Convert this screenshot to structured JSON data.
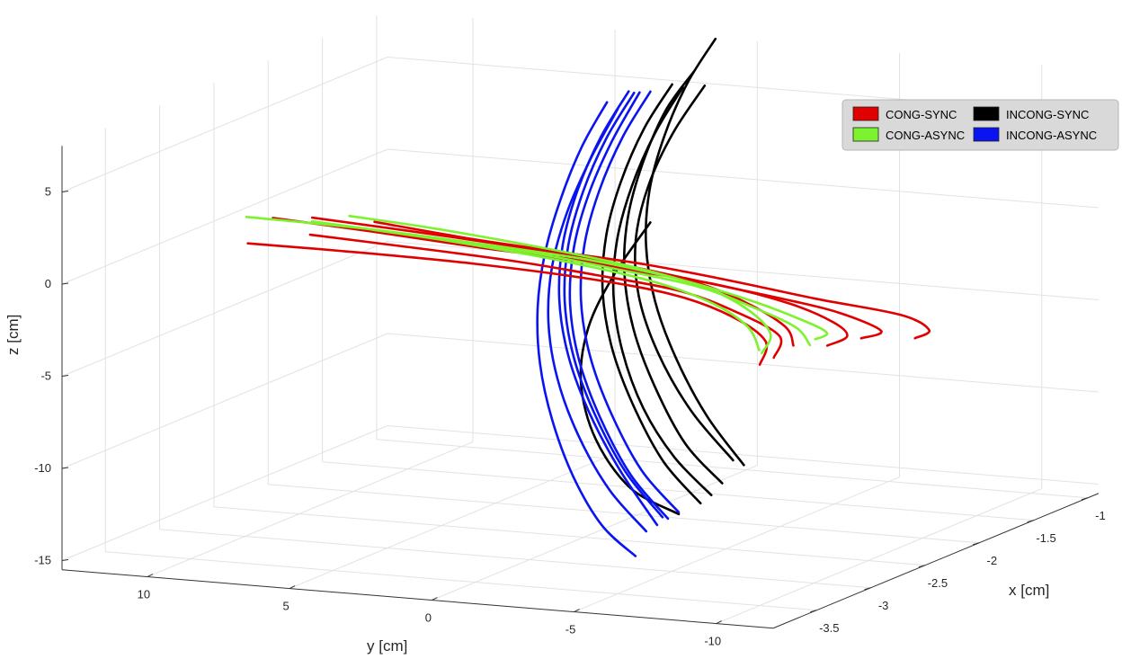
{
  "chart_data": {
    "type": "line3d",
    "xlabel": "x [cm]",
    "ylabel": "y [cm]",
    "zlabel": "z [cm]",
    "xlim": [
      -3.9,
      -0.9
    ],
    "ylim": [
      -12,
      13
    ],
    "zlim": [
      -15.5,
      7.5
    ],
    "x_ticks": [
      "-1",
      "-1.5",
      "-2",
      "-2.5",
      "-3",
      "-3.5"
    ],
    "y_ticks": [
      "10",
      "5",
      "0",
      "-5",
      "-10"
    ],
    "z_ticks": [
      "5",
      "0",
      "-5",
      "-10",
      "-15"
    ],
    "grid": true,
    "legend_placement": "top-right",
    "series": [
      {
        "name": "CONG-SYNC",
        "color": "#e00000",
        "trajectories": [
          {
            "y": [
              8.5,
              5,
              2,
              -1,
              -4,
              -7,
              -10,
              -11,
              -10.5
            ],
            "z": [
              -0.2,
              -0.7,
              -1.0,
              -1.3,
              -1.8,
              -2.4,
              -2.9,
              -3.6,
              -4.1
            ]
          },
          {
            "y": [
              10.5,
              7,
              3,
              0,
              -3,
              -6,
              -8,
              -9.5,
              -8.8
            ],
            "z": [
              -0.1,
              -0.4,
              -0.8,
              -1.2,
              -1.8,
              -2.4,
              -2.9,
              -3.7,
              -4.2
            ]
          },
          {
            "y": [
              9,
              6,
              2,
              -1,
              -4,
              -6.5,
              -8,
              -8.5,
              -7.8
            ],
            "z": [
              -0.3,
              -0.6,
              -1.0,
              -1.4,
              -1.8,
              -2.5,
              -3.3,
              -4.0,
              -4.6
            ]
          },
          {
            "y": [
              11.5,
              8,
              4,
              0,
              -3,
              -5,
              -6.5,
              -6.8
            ],
            "z": [
              0.0,
              -0.3,
              -0.7,
              -1.0,
              -1.5,
              -2.4,
              -3.6,
              -4.6
            ]
          },
          {
            "y": [
              10,
              7,
              3,
              0,
              -3,
              -5,
              -6.5,
              -6.3
            ],
            "z": [
              -0.6,
              -0.8,
              -1.1,
              -1.5,
              -2.0,
              -2.9,
              -4.0,
              -5.2
            ]
          },
          {
            "y": [
              12,
              8,
              4,
              0,
              -3,
              -5,
              -6.2,
              -6.0
            ],
            "z": [
              -1.2,
              -1.2,
              -1.3,
              -1.6,
              -2.1,
              -3.0,
              -4.2,
              -5.5
            ]
          }
        ]
      },
      {
        "name": "CONG-ASYNC",
        "color": "#7df22e",
        "trajectories": [
          {
            "y": [
              13,
              9,
              5,
              1,
              -2,
              -4.5,
              -6.5,
              -7.4,
              -7.0
            ],
            "z": [
              -0.5,
              -0.6,
              -0.9,
              -1.3,
              -1.9,
              -2.7,
              -3.6,
              -4.2,
              -4.6
            ]
          },
          {
            "y": [
              10.5,
              7,
              3,
              0,
              -3,
              -5,
              -6.5,
              -7.0
            ],
            "z": [
              -0.3,
              -0.6,
              -1.0,
              -1.5,
              -2.1,
              -3.0,
              -3.9,
              -4.8
            ]
          },
          {
            "y": [
              9,
              6,
              2,
              -1,
              -3.5,
              -5,
              -5.8,
              -5.5
            ],
            "z": [
              0.3,
              0.0,
              -0.6,
              -1.2,
              -2.0,
              -3.0,
              -4.2,
              -5.3
            ]
          },
          {
            "y": [
              8,
              5,
              1,
              -2,
              -4,
              -5.2,
              -5.6
            ],
            "z": [
              -0.2,
              -0.5,
              -1.1,
              -1.8,
              -2.7,
              -3.8,
              -5.0
            ]
          }
        ]
      },
      {
        "name": "INCONG-SYNC",
        "color": "#000000",
        "trajectories": [
          {
            "x": -1.6,
            "z": [
              9.5,
              7,
              4,
              1,
              -2,
              -5,
              -8,
              -11,
              -13.5
            ]
          },
          {
            "x": -1.8,
            "z": [
              8.2,
              6,
              3,
              0,
              -3,
              -6,
              -9,
              -12,
              -14.0
            ]
          },
          {
            "x": -2.0,
            "z": [
              8.0,
              5.5,
              2.5,
              -0.5,
              -3.5,
              -6.5,
              -9.5,
              -12.5,
              -14.6
            ]
          },
          {
            "x": -1.9,
            "z": [
              7.6,
              5,
              2,
              -1,
              -4,
              -7,
              -10,
              -12.5,
              -14.4
            ]
          },
          {
            "x": -2.2,
            "z": [
              1.0,
              -2,
              -5,
              -8,
              -11,
              -13.5,
              -14.7
            ]
          },
          {
            "x": -1.7,
            "z": [
              7.2,
              4.5,
              1.5,
              -1.5,
              -4.5,
              -7.5,
              -10.5,
              -13.0
            ]
          }
        ]
      },
      {
        "name": "INCONG-ASYNC",
        "color": "#0a14f0",
        "trajectories": [
          {
            "x": -2.6,
            "z": [
              8.5,
              6,
              3,
              0,
              -3,
              -6,
              -9,
              -12,
              -14.5,
              -16.0
            ]
          },
          {
            "x": -2.4,
            "z": [
              8.6,
              6,
              3,
              0,
              -3,
              -6,
              -9,
              -12,
              -14.8
            ]
          },
          {
            "x": -2.3,
            "z": [
              8.3,
              5.5,
              2.5,
              -0.5,
              -3.5,
              -6.5,
              -9.5,
              -12.5,
              -14.7
            ]
          },
          {
            "x": -2.2,
            "z": [
              8.1,
              5.5,
              2.5,
              -0.5,
              -3.5,
              -6.5,
              -9.5,
              -12.5,
              -14.6
            ]
          },
          {
            "x": -2.5,
            "z": [
              7.9,
              5,
              2,
              -1,
              -4,
              -7,
              -10,
              -12.8,
              -14.9
            ]
          },
          {
            "x": -2.35,
            "z": [
              8.4,
              5.8,
              2.8,
              -0.2,
              -3.2,
              -6.2,
              -9.2,
              -12.2,
              -14.5
            ]
          }
        ]
      }
    ]
  }
}
